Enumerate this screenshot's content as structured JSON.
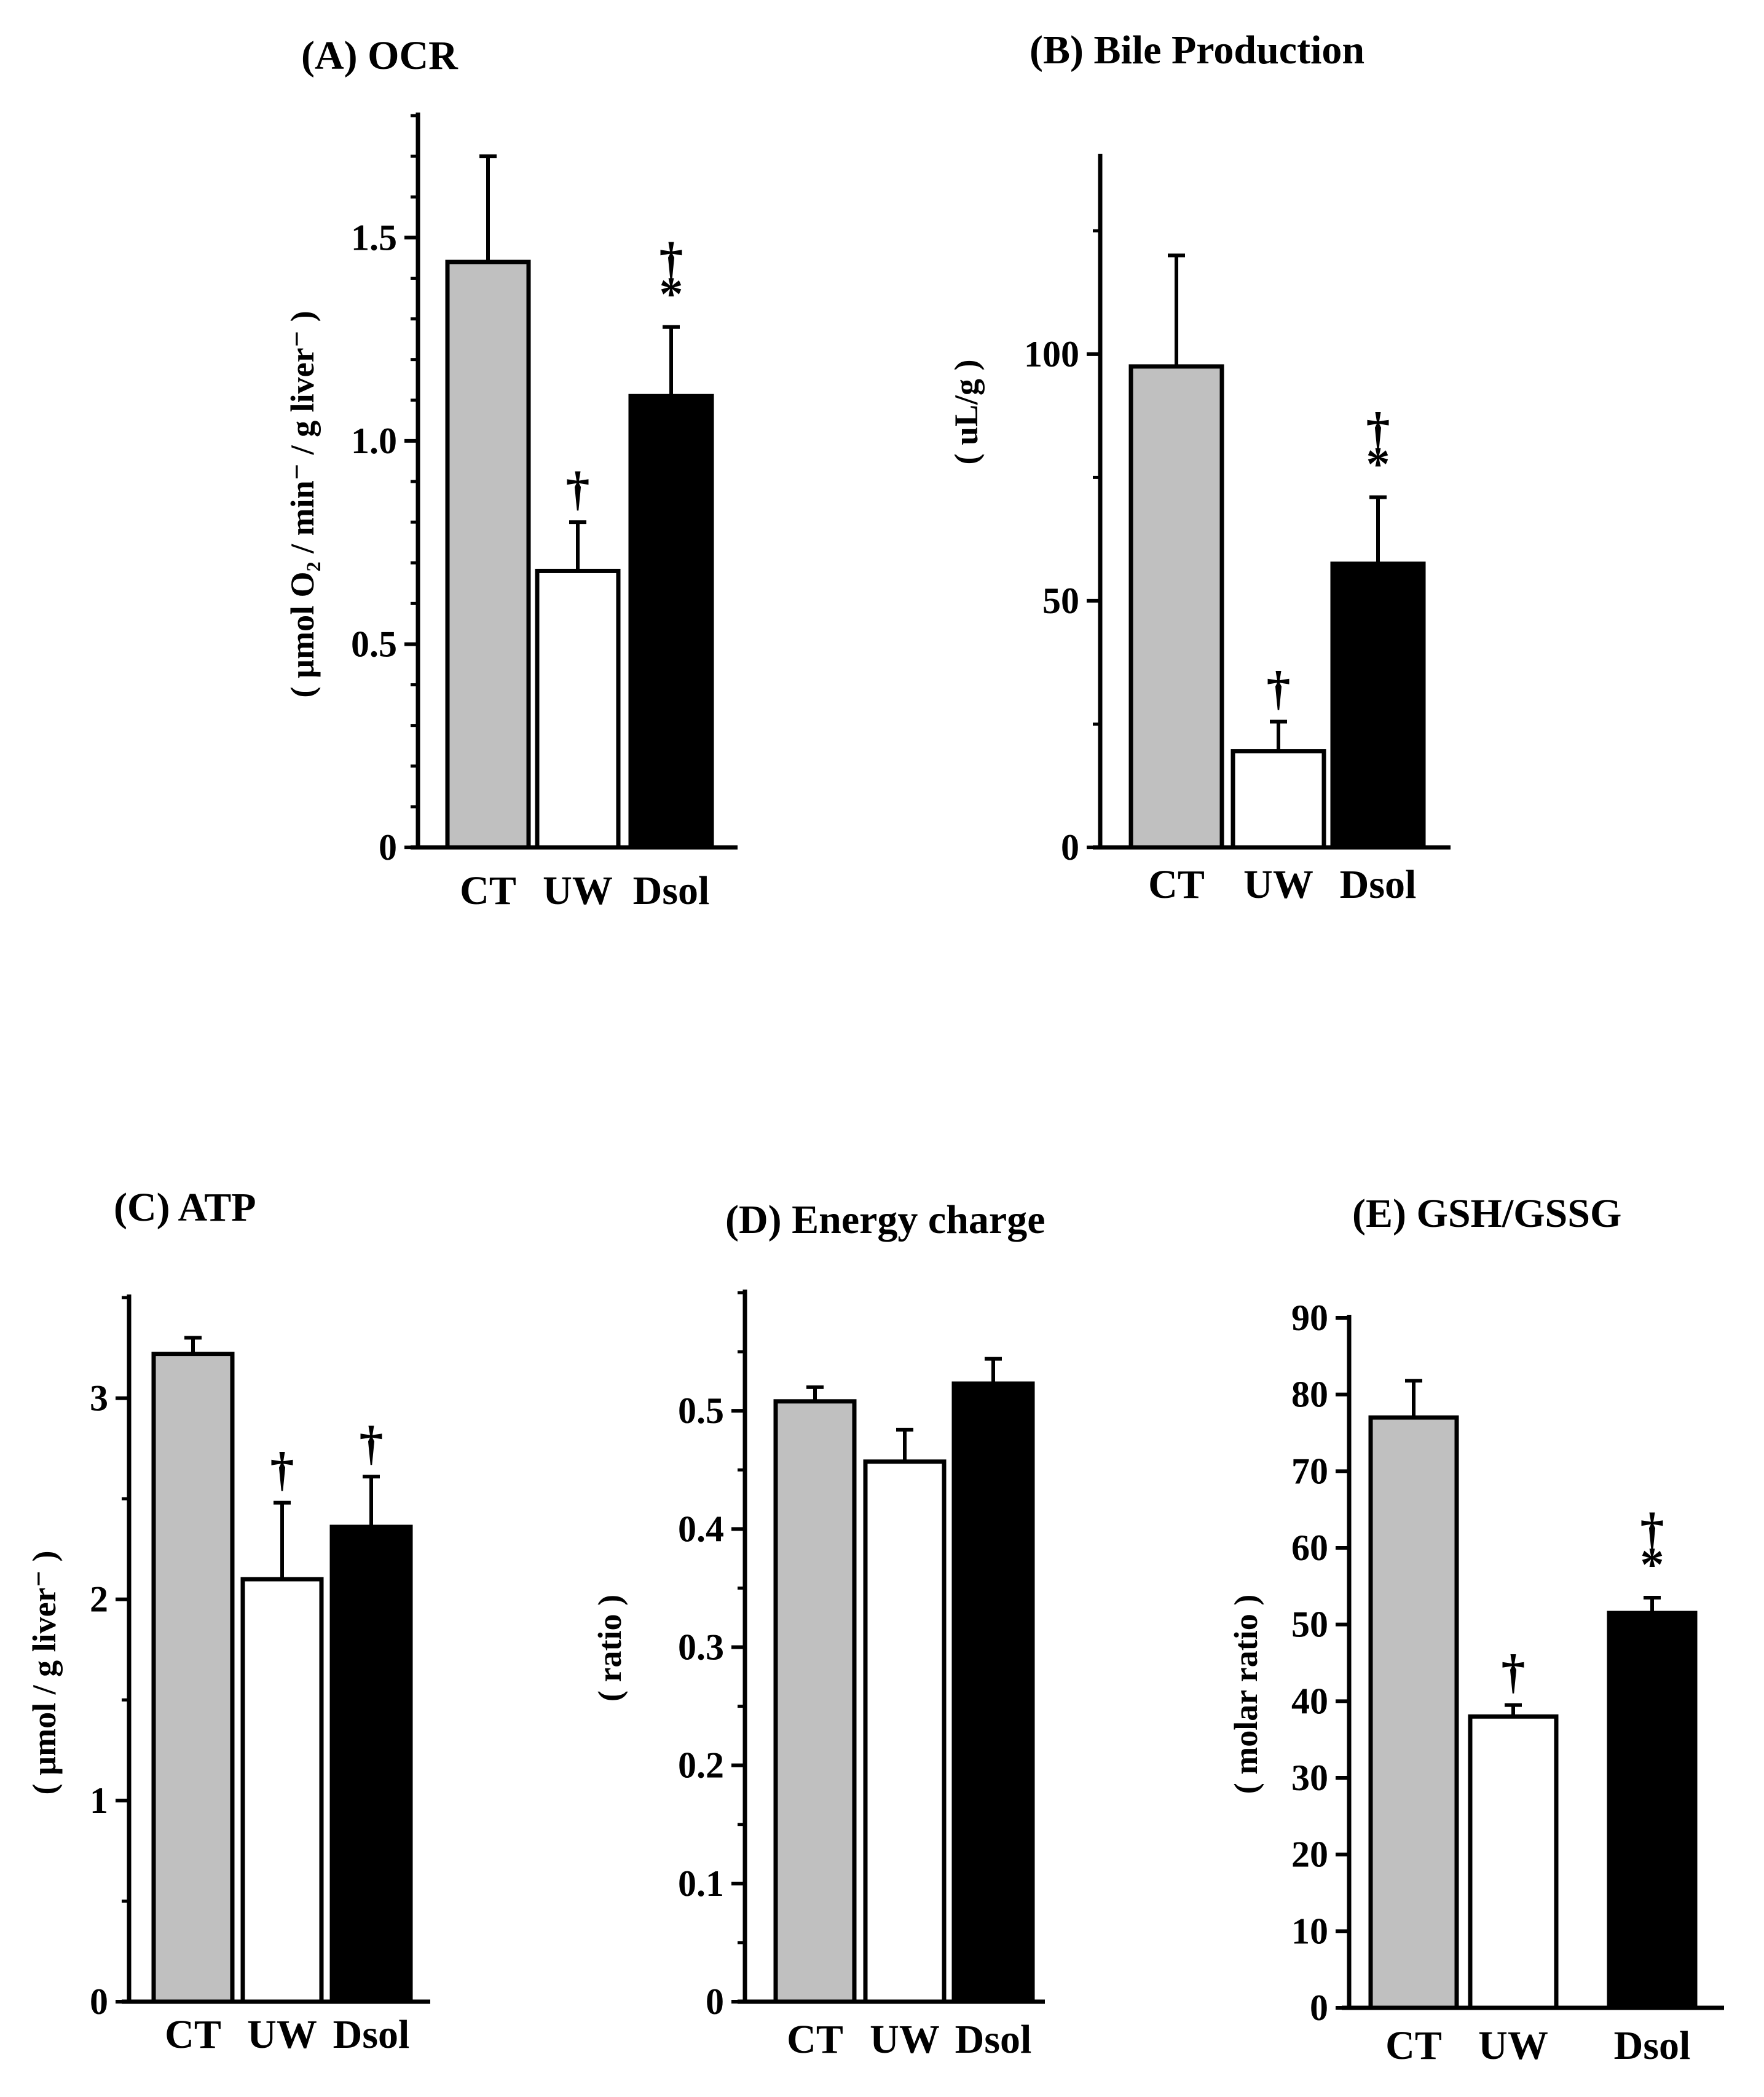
{
  "chart_data": [
    {
      "id": "A",
      "type": "bar",
      "title": "(A)   OCR",
      "ylabel": "( µmol O₂ / min⁻ / g liver⁻ )",
      "xlabel": "",
      "categories": [
        "CT",
        "UW",
        "Dsol"
      ],
      "values": [
        1.44,
        0.68,
        1.11
      ],
      "errors": [
        0.26,
        0.12,
        0.17
      ],
      "significance": [
        "",
        "†",
        "†\n*"
      ],
      "ylim": [
        0,
        1.8
      ],
      "yticks": [
        0,
        0.5,
        1.0,
        1.5
      ],
      "ytick_labels": [
        "0",
        "0.5",
        "1.0",
        "1.5"
      ],
      "minor_step": 0.1,
      "colors": [
        "#c0c0c0",
        "#ffffff",
        "#000000"
      ]
    },
    {
      "id": "B",
      "type": "bar",
      "title": "(B)   Bile Production",
      "ylabel": "( uL/g )",
      "xlabel": "",
      "categories": [
        "CT",
        "UW",
        "Dsol"
      ],
      "values": [
        97.5,
        19.5,
        57.5
      ],
      "errors": [
        22.5,
        6,
        13.5
      ],
      "significance": [
        "",
        "†",
        "†\n*"
      ],
      "ylim": [
        0,
        140
      ],
      "yticks": [
        0,
        50,
        100
      ],
      "ytick_labels": [
        "0",
        "50",
        "100"
      ],
      "minor_step": 25,
      "colors": [
        "#c0c0c0",
        "#ffffff",
        "#000000"
      ]
    },
    {
      "id": "C",
      "type": "bar",
      "title": "(C)   ATP",
      "ylabel": "( µmol  / g liver⁻ )",
      "xlabel": "",
      "categories": [
        "CT",
        "UW",
        "Dsol"
      ],
      "values": [
        3.22,
        2.1,
        2.36
      ],
      "errors": [
        0.08,
        0.38,
        0.25
      ],
      "significance": [
        "",
        "†",
        "†"
      ],
      "ylim": [
        0,
        3.5
      ],
      "yticks": [
        0,
        1,
        2,
        3
      ],
      "ytick_labels": [
        "0",
        "1",
        "2",
        "3"
      ],
      "minor_step": 0.5,
      "colors": [
        "#c0c0c0",
        "#ffffff",
        "#000000"
      ]
    },
    {
      "id": "D",
      "type": "bar",
      "title": "(D)   Energy charge",
      "ylabel": "( ratio )",
      "xlabel": "",
      "categories": [
        "CT",
        "UW",
        "Dsol"
      ],
      "values": [
        0.508,
        0.457,
        0.523
      ],
      "errors": [
        0.012,
        0.027,
        0.021
      ],
      "significance": [
        "",
        "",
        ""
      ],
      "ylim": [
        0,
        0.6
      ],
      "yticks": [
        0,
        0.1,
        0.2,
        0.3,
        0.4,
        0.5
      ],
      "ytick_labels": [
        "0",
        "0.1",
        "0.2",
        "0.3",
        "0.4",
        "0.5"
      ],
      "minor_step": 0.05,
      "colors": [
        "#c0c0c0",
        "#ffffff",
        "#000000"
      ]
    },
    {
      "id": "E",
      "type": "bar",
      "title": "(E)  GSH/GSSG",
      "ylabel": "( molar ratio )",
      "xlabel": "",
      "categories": [
        "CT",
        "UW",
        "Dsol"
      ],
      "values": [
        77,
        38,
        51.5
      ],
      "errors": [
        4.8,
        1.5,
        2
      ],
      "significance": [
        "",
        "†",
        "†\n*"
      ],
      "ylim": [
        0,
        90
      ],
      "yticks": [
        0,
        10,
        20,
        30,
        40,
        50,
        60,
        70,
        80,
        90
      ],
      "ytick_labels": [
        "0",
        "10",
        "20",
        "30",
        "40",
        "50",
        "60",
        "70",
        "80",
        "90"
      ],
      "minor_step": 10,
      "colors": [
        "#c0c0c0",
        "#ffffff",
        "#000000"
      ]
    }
  ]
}
